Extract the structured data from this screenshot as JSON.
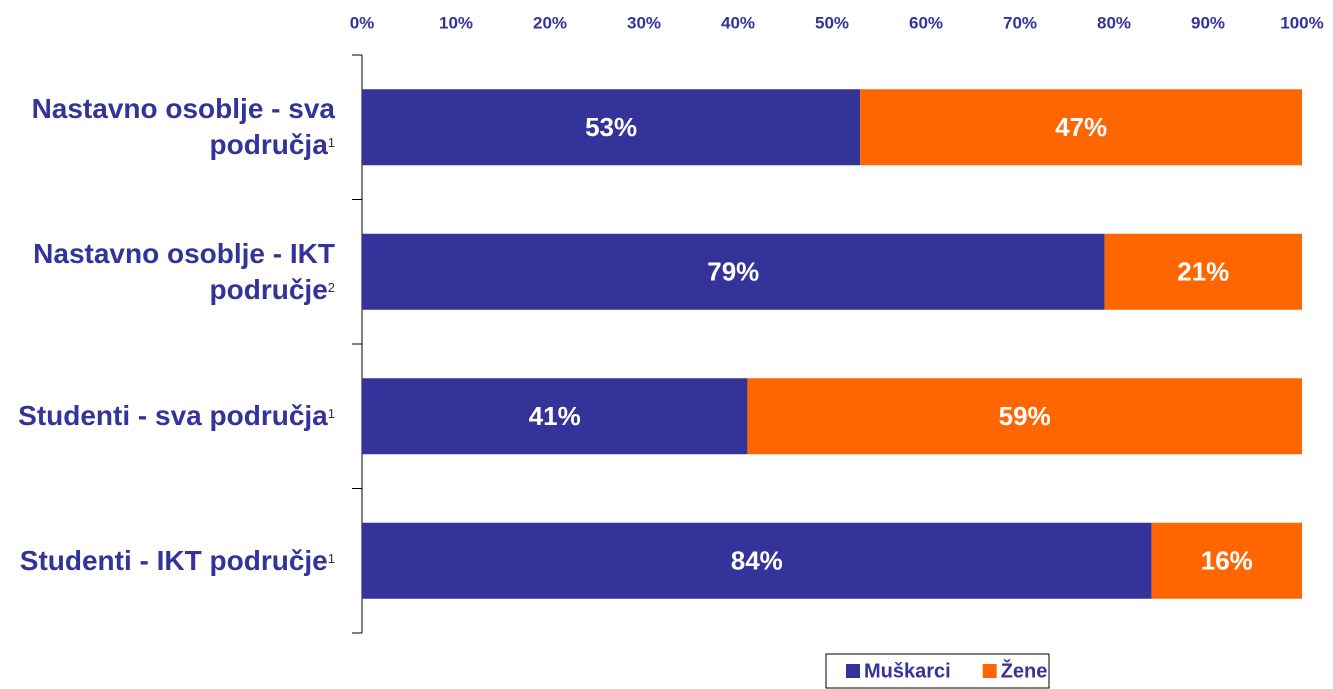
{
  "chart_data": {
    "type": "stacked_barh",
    "categories": [
      "Nastavno osoblje - sva područja",
      "Nastavno osoblje - IKT područje",
      "Studenti - sva područja",
      "Studenti - IKT područje"
    ],
    "category_notes": [
      "1",
      "2",
      "1",
      "1"
    ],
    "series": [
      {
        "name": "Muškarci",
        "color": "#333399",
        "values": [
          53,
          79,
          41,
          84
        ],
        "value_labels": [
          "53%",
          "79%",
          "41%",
          "84%"
        ]
      },
      {
        "name": "Žene",
        "color": "#ff6600",
        "values": [
          47,
          21,
          59,
          16
        ],
        "value_labels": [
          "47%",
          "21%",
          "59%",
          "16%"
        ]
      }
    ],
    "xlim": [
      0,
      100
    ],
    "xticks": [
      {
        "value": 0,
        "label": "0%"
      },
      {
        "value": 10,
        "label": "10%"
      },
      {
        "value": 20,
        "label": "20%"
      },
      {
        "value": 30,
        "label": "30%"
      },
      {
        "value": 40,
        "label": "40%"
      },
      {
        "value": 50,
        "label": "50%"
      },
      {
        "value": 60,
        "label": "60%"
      },
      {
        "value": 70,
        "label": "70%"
      },
      {
        "value": 80,
        "label": "80%"
      },
      {
        "value": 90,
        "label": "90%"
      },
      {
        "value": 100,
        "label": "100%"
      }
    ],
    "legend": "bottom-right"
  }
}
